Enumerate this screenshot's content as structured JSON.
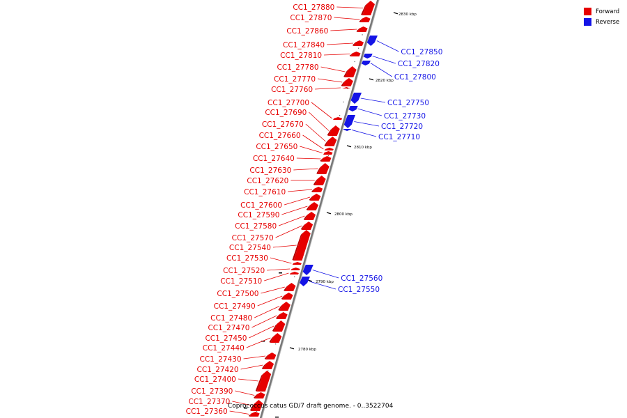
{
  "legend": {
    "forward_label": "Forward",
    "reverse_label": "Reverse",
    "forward_color": "#e60000",
    "reverse_color": "#1414e6"
  },
  "caption": "Coprococcus catus GD/7 draft genome. - 0..3522704",
  "ticks": [
    "2830 kbp",
    "2820 kbp",
    "2810 kbp",
    "2800 kbp",
    "2790 kbp",
    "2780 kbp"
  ],
  "forward_genes": [
    "CC1_27880",
    "CC1_27870",
    "CC1_27860",
    "CC1_27840",
    "CC1_27810",
    "CC1_27780",
    "CC1_27770",
    "CC1_27760",
    "CC1_27700",
    "CC1_27690",
    "CC1_27670",
    "CC1_27660",
    "CC1_27650",
    "CC1_27640",
    "CC1_27630",
    "CC1_27620",
    "CC1_27610",
    "CC1_27600",
    "CC1_27590",
    "CC1_27580",
    "CC1_27570",
    "CC1_27540",
    "CC1_27530",
    "CC1_27520",
    "CC1_27510",
    "CC1_27500",
    "CC1_27490",
    "CC1_27480",
    "CC1_27470",
    "CC1_27450",
    "CC1_27440",
    "CC1_27430",
    "CC1_27420",
    "CC1_27400",
    "CC1_27390",
    "CC1_27370",
    "CC1_27360"
  ],
  "reverse_genes": [
    "CC1_27850",
    "CC1_27820",
    "CC1_27800",
    "CC1_27750",
    "CC1_27730",
    "CC1_27720",
    "CC1_27710",
    "CC1_27560",
    "CC1_27550"
  ]
}
